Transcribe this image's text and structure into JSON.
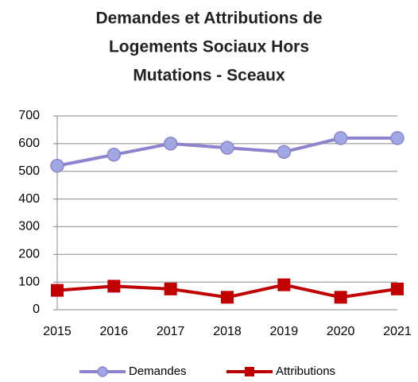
{
  "chart_data": {
    "type": "line",
    "title": [
      "Demandes et Attributions de",
      "Logements Sociaux Hors",
      "Mutations - Sceaux"
    ],
    "categories": [
      "2015",
      "2016",
      "2017",
      "2018",
      "2019",
      "2020",
      "2021"
    ],
    "series": [
      {
        "name": "Demandes",
        "color": "#8c84cc",
        "marker": "circle",
        "values": [
          520,
          560,
          600,
          585,
          570,
          620,
          620
        ]
      },
      {
        "name": "Attributions",
        "color": "#c00000",
        "marker": "square",
        "values": [
          70,
          85,
          75,
          45,
          90,
          45,
          75
        ]
      }
    ],
    "ylim": [
      0,
      700
    ],
    "yticks": [
      0,
      100,
      200,
      300,
      400,
      500,
      600,
      700
    ],
    "grid": true,
    "legend": "bottom"
  }
}
